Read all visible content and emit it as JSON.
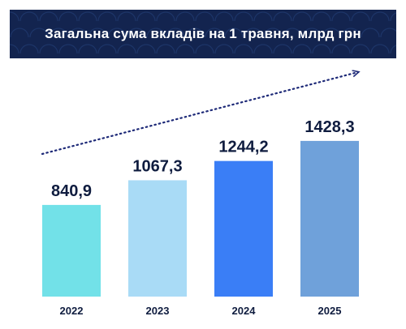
{
  "header": {
    "title": "Загальна сума вкладів на 1 травня, млрд грн",
    "background_color": "#13244f",
    "pattern_color": "#1d3568"
  },
  "chart_data": {
    "type": "bar",
    "title": "Загальна сума вкладів на 1 травня, млрд грн",
    "xlabel": "",
    "ylabel": "",
    "categories": [
      "2022",
      "2023",
      "2024",
      "2025"
    ],
    "values": [
      840.9,
      1067.3,
      1244.2,
      1428.3
    ],
    "value_labels": [
      "840,9",
      "1067,3",
      "1244,2",
      "1428,3"
    ],
    "bar_colors": [
      "#72e1e8",
      "#a9dbf6",
      "#3a7ef6",
      "#6fa1da"
    ],
    "trend_arrow": true,
    "trend_color": "#1e2a78",
    "grid": false,
    "legend": "none"
  }
}
